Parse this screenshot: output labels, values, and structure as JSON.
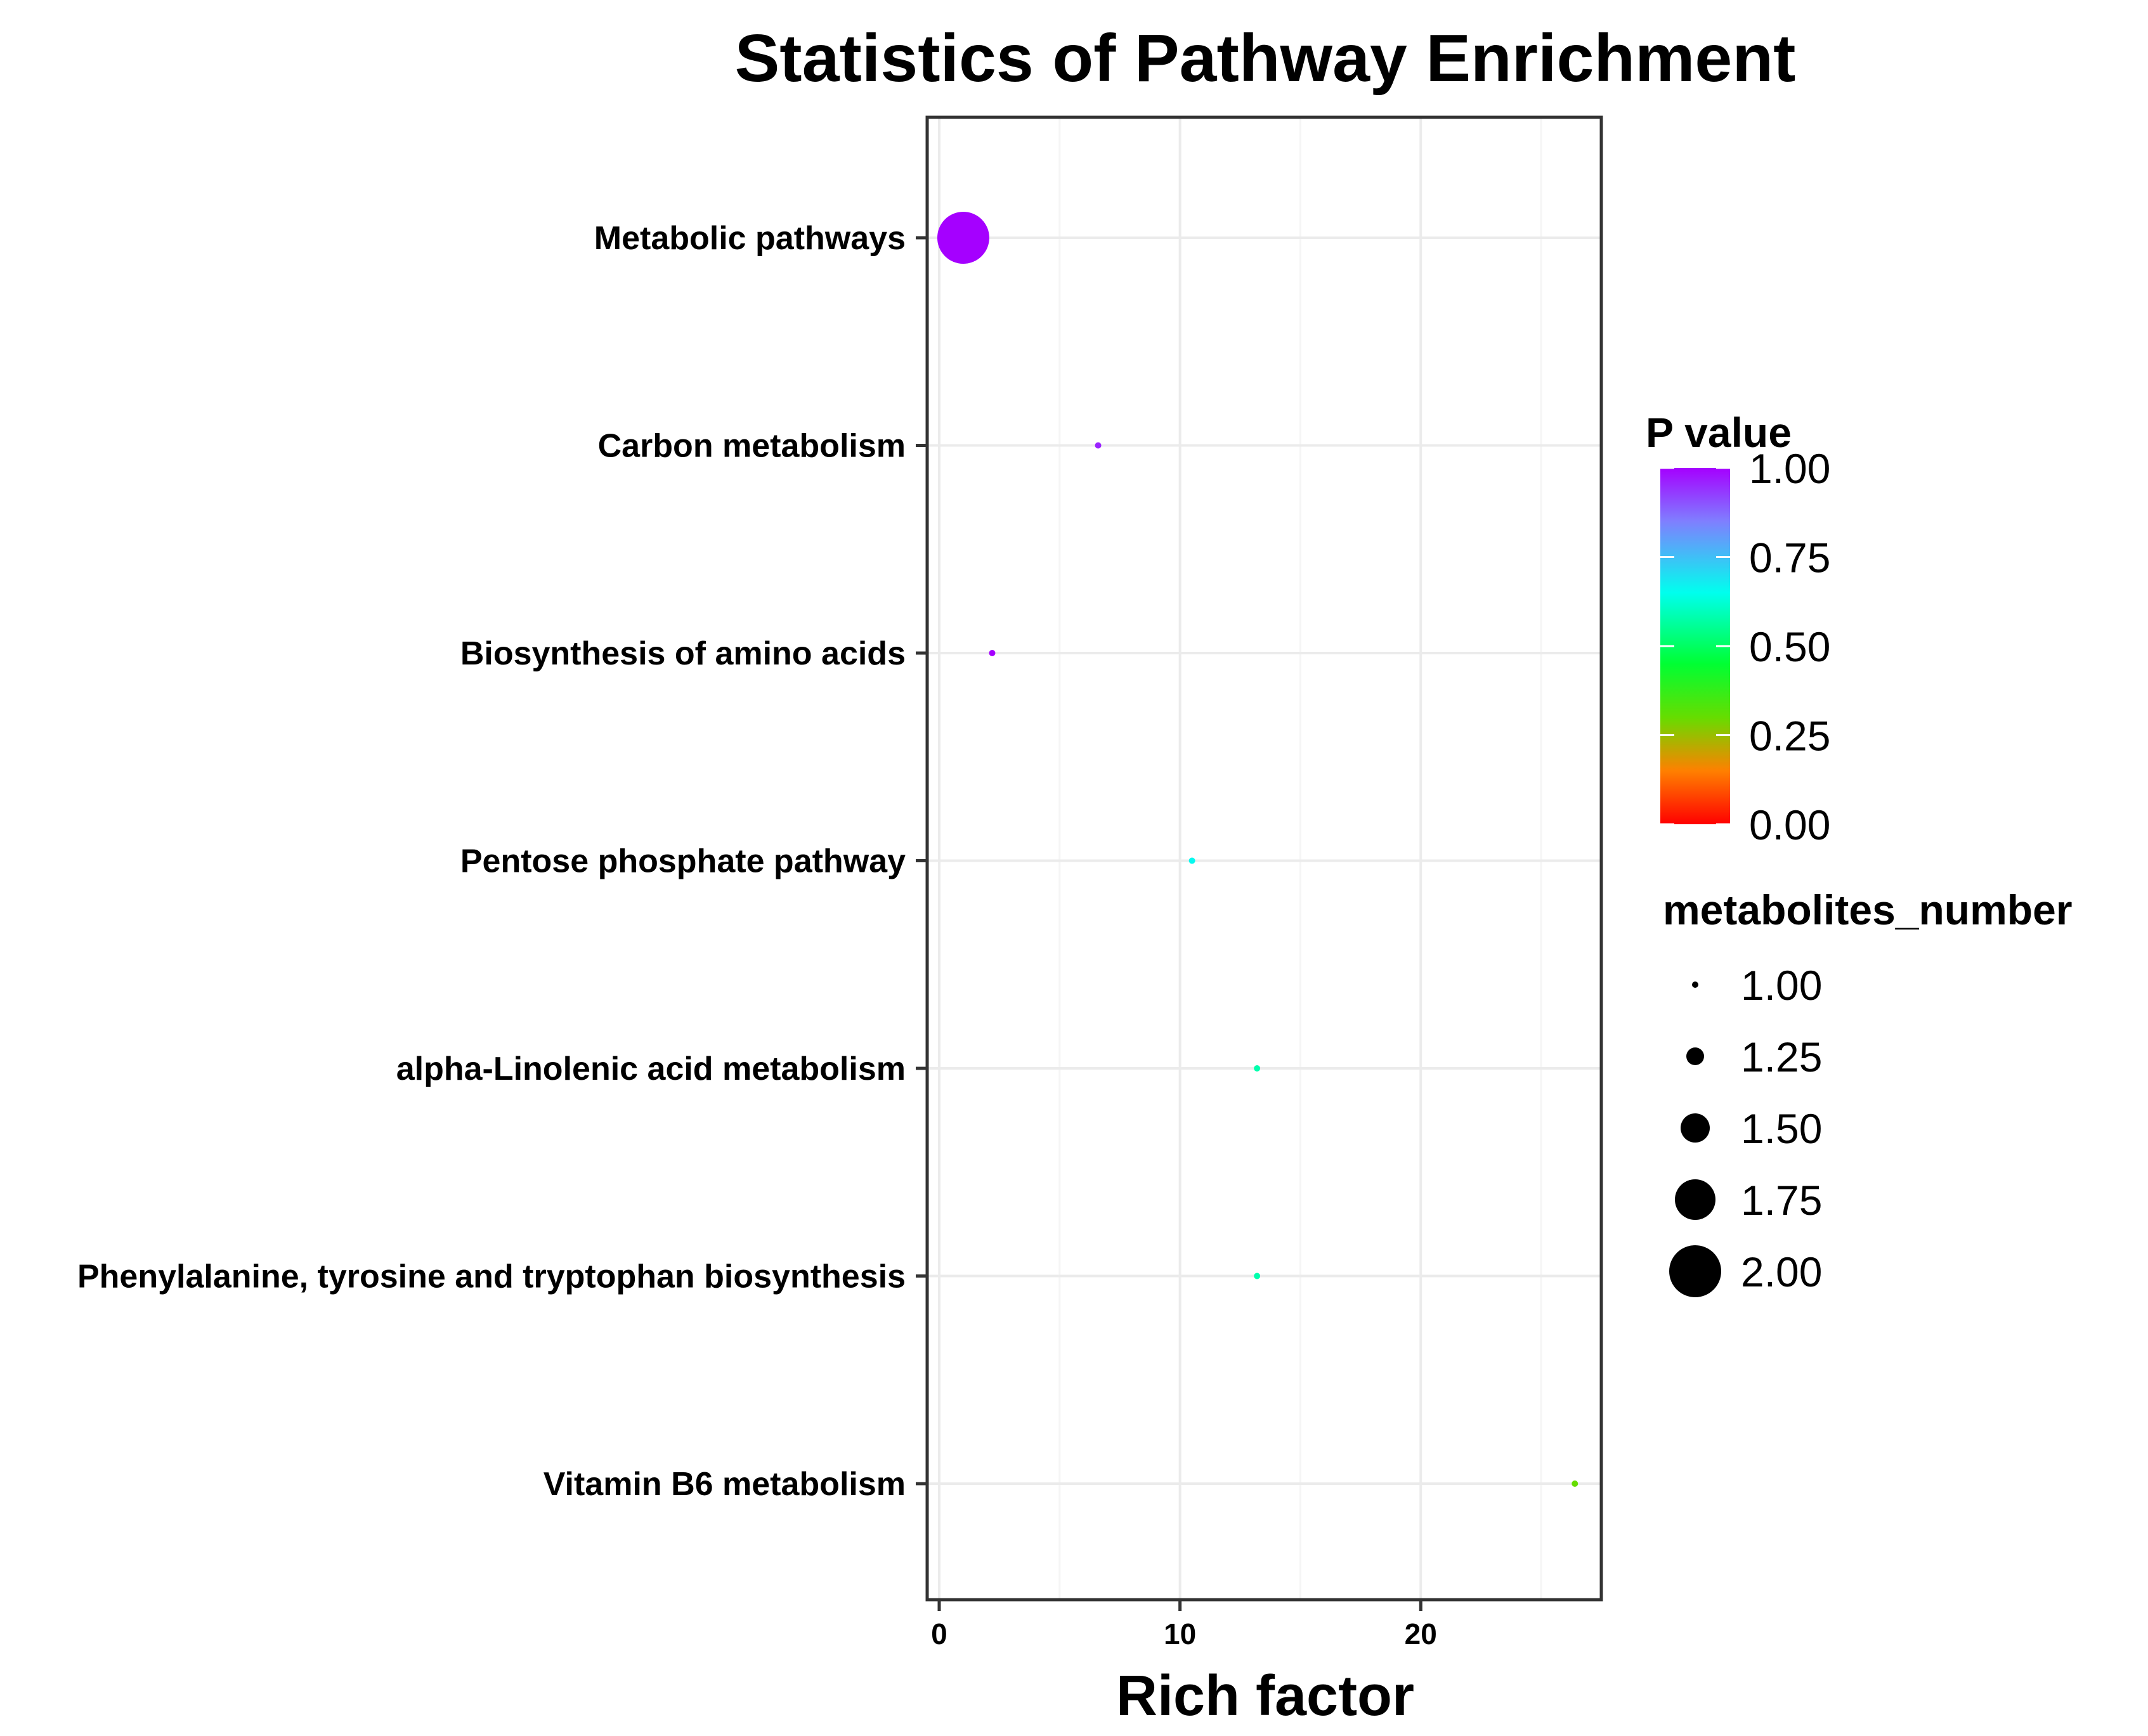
{
  "chart_data": {
    "type": "scatter",
    "title": "Statistics of Pathway Enrichment",
    "xlabel": "Rich factor",
    "ylabel": "",
    "xlim": [
      -0.5,
      27.5
    ],
    "xticks": [
      "0",
      "10",
      "20"
    ],
    "xtick_values": [
      0,
      10,
      20
    ],
    "grid": true,
    "categories": [
      "Metabolic pathways",
      "Carbon metabolism",
      "Biosynthesis of amino acids",
      "Pentose phosphate pathway",
      "alpha-Linolenic acid metabolism",
      "Phenylalanine, tyrosine and tryptophan biosynthesis",
      "Vitamin B6 metabolism"
    ],
    "points": [
      {
        "pathway": "Metabolic pathways",
        "rich_factor": 1.0,
        "p_value": 1.0,
        "metabolites_number": 2
      },
      {
        "pathway": "Carbon metabolism",
        "rich_factor": 6.6,
        "p_value": 0.96,
        "metabolites_number": 1
      },
      {
        "pathway": "Biosynthesis of amino acids",
        "rich_factor": 2.2,
        "p_value": 1.0,
        "metabolites_number": 1
      },
      {
        "pathway": "Pentose phosphate pathway",
        "rich_factor": 10.5,
        "p_value": 0.66,
        "metabolites_number": 1
      },
      {
        "pathway": "alpha-Linolenic acid metabolism",
        "rich_factor": 13.2,
        "p_value": 0.58,
        "metabolites_number": 1
      },
      {
        "pathway": "Phenylalanine, tyrosine and tryptophan biosynthesis",
        "rich_factor": 13.2,
        "p_value": 0.58,
        "metabolites_number": 1
      },
      {
        "pathway": "Vitamin B6 metabolism",
        "rich_factor": 26.4,
        "p_value": 0.3,
        "metabolites_number": 1
      }
    ],
    "legend": {
      "placement": "right",
      "color": {
        "title": "P value",
        "labels": [
          "1.00",
          "0.75",
          "0.50",
          "0.25",
          "0.00"
        ],
        "values": [
          1.0,
          0.75,
          0.5,
          0.25,
          0.0
        ]
      },
      "size": {
        "title": "metabolites_number",
        "labels": [
          "1.00",
          "1.25",
          "1.50",
          "1.75",
          "2.00"
        ],
        "values": [
          1.0,
          1.25,
          1.5,
          1.75,
          2.0
        ]
      }
    },
    "colors": {
      "gradient": [
        "#ff0000",
        "#ff8000",
        "#66dd00",
        "#00ff33",
        "#00ffee",
        "#7f7fff",
        "#a500ff"
      ],
      "gradient_stops": [
        0.0,
        0.15,
        0.3,
        0.45,
        0.65,
        0.85,
        1.0
      ],
      "panel_border": "#333333",
      "grid_major": "#ebebeb",
      "grid_minor": "#f5f5f5",
      "text": "#000000"
    }
  }
}
